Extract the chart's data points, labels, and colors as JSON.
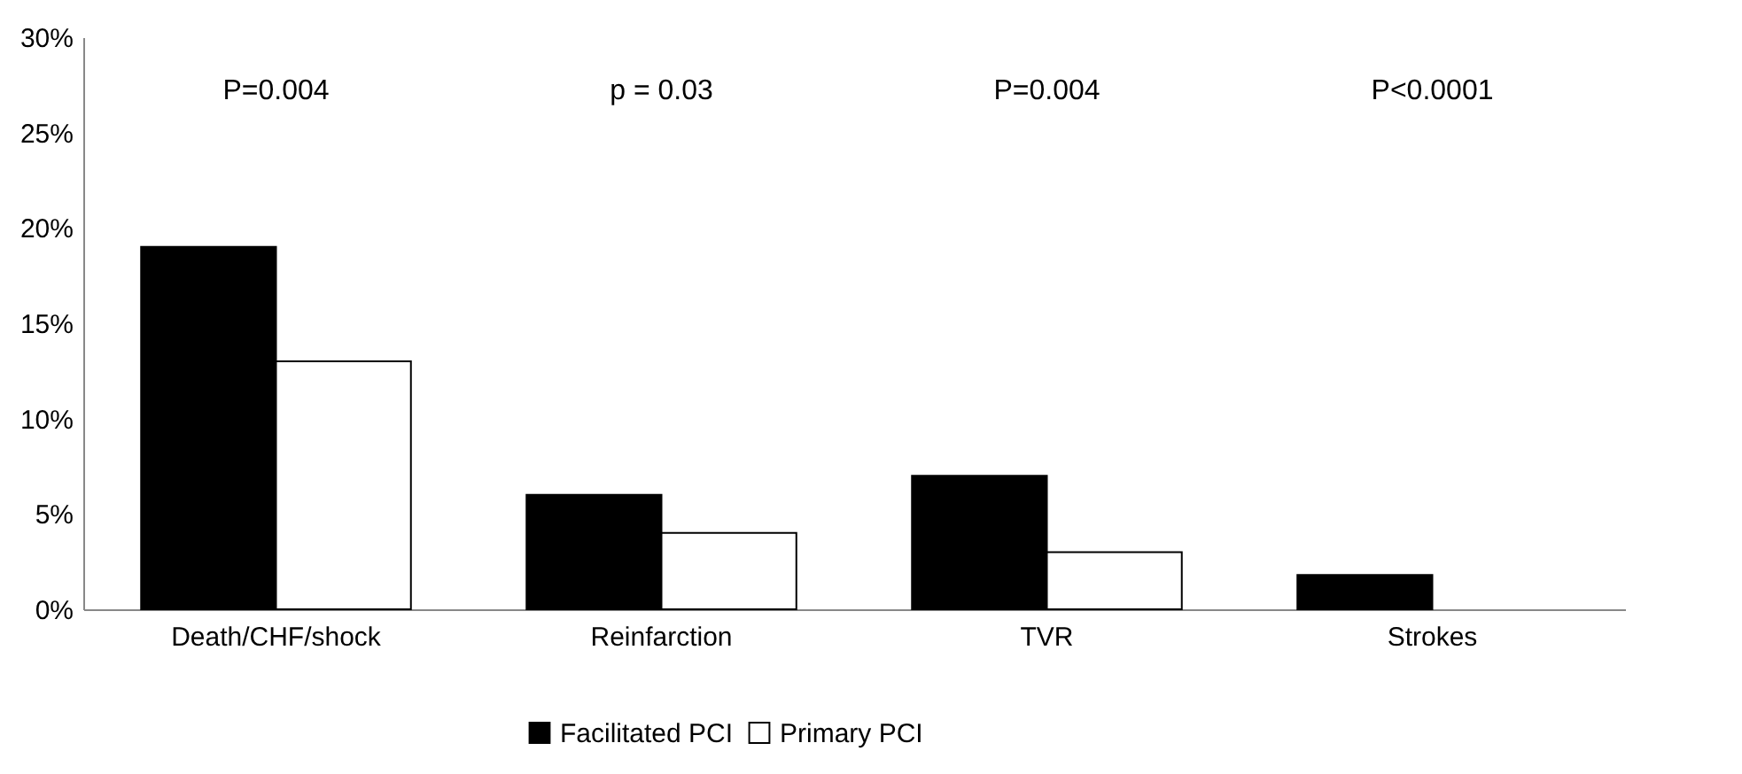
{
  "chart_data": {
    "type": "bar",
    "categories": [
      "Death/CHF/shock",
      "Reinfarction",
      "TVR",
      "Strokes"
    ],
    "series": [
      {
        "name": "Facilitated PCI",
        "color": "#000000",
        "values": [
          19,
          6,
          7,
          1.8
        ]
      },
      {
        "name": "Primary PCI",
        "color": "#ffffff",
        "values": [
          13,
          4,
          3,
          null
        ]
      }
    ],
    "ylim": [
      0,
      30
    ],
    "yticks": [
      {
        "value": 0,
        "label": "0%"
      },
      {
        "value": 5,
        "label": "5%"
      },
      {
        "value": 10,
        "label": "10%"
      },
      {
        "value": 15,
        "label": "15%"
      },
      {
        "value": 20,
        "label": "20%"
      },
      {
        "value": 25,
        "label": "25%"
      },
      {
        "value": 30,
        "label": "30%"
      }
    ],
    "annotations": [
      "P=0.004",
      "p = 0.03",
      "P=0.004",
      "P<0.0001"
    ],
    "grid": false,
    "legend": "bottom"
  }
}
